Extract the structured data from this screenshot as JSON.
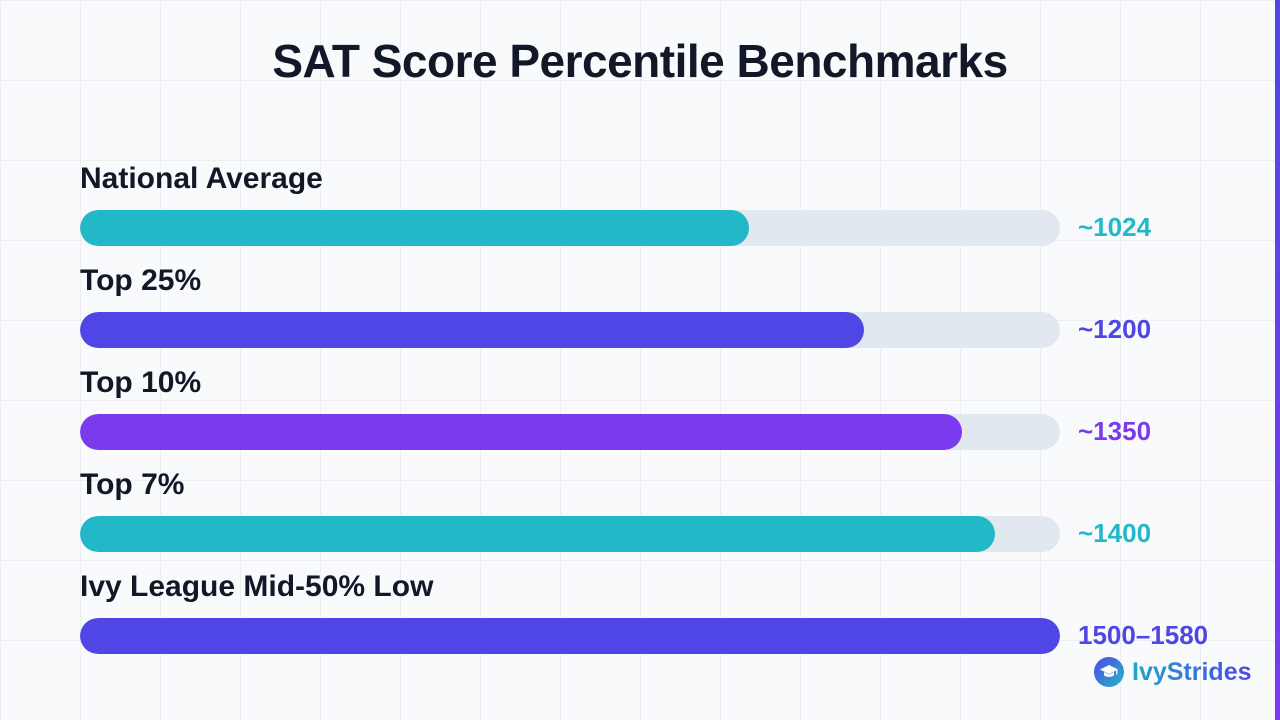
{
  "title": "SAT Score Percentile Benchmarks",
  "chart_data": {
    "type": "bar",
    "orientation": "horizontal",
    "title": "SAT Score Percentile Benchmarks",
    "xlim": [
      0,
      1500
    ],
    "grid": false,
    "legend": "none",
    "categories": [
      "National Average",
      "Top 25%",
      "Top 10%",
      "Top 7%",
      "Ivy League Mid-50% Low"
    ],
    "values": [
      1024,
      1200,
      1350,
      1400,
      1500
    ],
    "value_labels": [
      "~1024",
      "~1200",
      "~1350",
      "~1400",
      "1500–1580"
    ],
    "colors": [
      "#22b8c8",
      "#4f46e5",
      "#7c3aed",
      "#22b8c8",
      "#4f46e5"
    ],
    "track_color": "#e2e8f0"
  },
  "brand": {
    "name": "IvyStrides",
    "icon": "graduation-cap-icon"
  }
}
